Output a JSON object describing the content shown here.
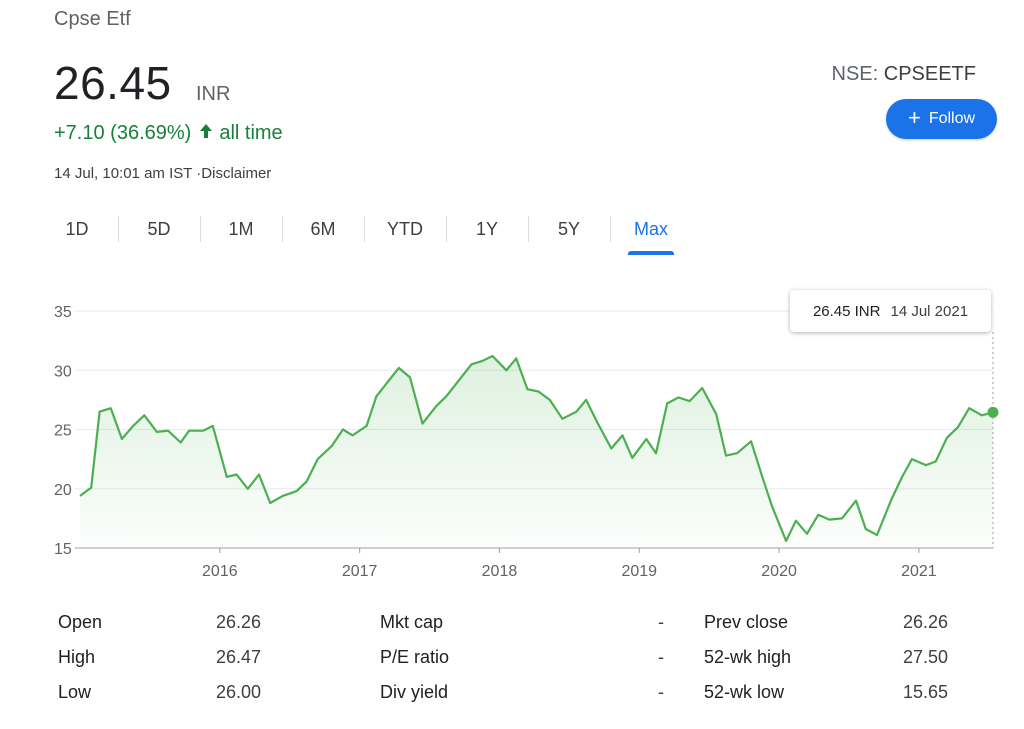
{
  "header": {
    "title": "Cpse Etf",
    "price": "26.45",
    "currency": "INR",
    "change": "+7.10 (36.69%)",
    "change_arrow": "↑",
    "change_period": "all time",
    "timestamp": "14 Jul, 10:01 am IST ·Disclaimer",
    "exchange": "NSE:",
    "ticker": "CPSEETF",
    "follow_label": "Follow",
    "follow_icon": "plus-icon"
  },
  "tabs": [
    {
      "label": "1D",
      "active": false
    },
    {
      "label": "5D",
      "active": false
    },
    {
      "label": "1M",
      "active": false
    },
    {
      "label": "6M",
      "active": false
    },
    {
      "label": "YTD",
      "active": false
    },
    {
      "label": "1Y",
      "active": false
    },
    {
      "label": "5Y",
      "active": false
    },
    {
      "label": "Max",
      "active": true
    }
  ],
  "tooltip": {
    "value": "26.45 INR",
    "date": "14 Jul 2021"
  },
  "colors": {
    "line": "#4caf50",
    "accent": "#1a73e8",
    "positive": "#188038"
  },
  "chart_data": {
    "type": "area",
    "y_ticks": [
      "35",
      "30",
      "25",
      "20",
      "15"
    ],
    "x_ticks": [
      "2016",
      "2017",
      "2018",
      "2019",
      "2020",
      "2021"
    ],
    "ylim": [
      15,
      35
    ],
    "grid": true,
    "x": [
      2015.0,
      2015.08,
      2015.14,
      2015.22,
      2015.3,
      2015.38,
      2015.46,
      2015.55,
      2015.63,
      2015.72,
      2015.78,
      2015.88,
      2015.95,
      2016.05,
      2016.12,
      2016.2,
      2016.28,
      2016.36,
      2016.45,
      2016.55,
      2016.62,
      2016.7,
      2016.8,
      2016.88,
      2016.95,
      2017.05,
      2017.12,
      2017.2,
      2017.28,
      2017.36,
      2017.45,
      2017.55,
      2017.62,
      2017.7,
      2017.8,
      2017.88,
      2017.95,
      2018.05,
      2018.12,
      2018.2,
      2018.28,
      2018.36,
      2018.45,
      2018.55,
      2018.62,
      2018.7,
      2018.8,
      2018.88,
      2018.95,
      2019.05,
      2019.12,
      2019.2,
      2019.28,
      2019.36,
      2019.45,
      2019.55,
      2019.62,
      2019.7,
      2019.8,
      2019.88,
      2019.95,
      2020.05,
      2020.12,
      2020.2,
      2020.28,
      2020.36,
      2020.45,
      2020.55,
      2020.62,
      2020.7,
      2020.8,
      2020.88,
      2020.95,
      2021.05,
      2021.12,
      2021.2,
      2021.28,
      2021.36,
      2021.45,
      2021.53
    ],
    "values": [
      19.4,
      20.1,
      26.5,
      26.8,
      24.2,
      25.3,
      26.2,
      24.8,
      24.9,
      23.9,
      24.9,
      24.9,
      25.3,
      21.0,
      21.2,
      20.0,
      21.2,
      18.8,
      19.4,
      19.8,
      20.6,
      22.5,
      23.6,
      25.0,
      24.5,
      25.3,
      27.8,
      29.0,
      30.2,
      29.4,
      25.5,
      27.0,
      27.8,
      29.0,
      30.5,
      30.8,
      31.2,
      30.0,
      31.0,
      28.4,
      28.2,
      27.5,
      25.9,
      26.5,
      27.5,
      25.6,
      23.4,
      24.5,
      22.6,
      24.2,
      23.0,
      27.2,
      27.7,
      27.4,
      28.5,
      26.3,
      22.8,
      23.0,
      24.0,
      21.0,
      18.5,
      15.6,
      17.3,
      16.2,
      17.8,
      17.4,
      17.5,
      19.0,
      16.6,
      16.1,
      19.0,
      21.0,
      22.5,
      22.0,
      22.3,
      24.3,
      25.2,
      26.8,
      26.2,
      26.45
    ]
  },
  "stats": [
    [
      {
        "label": "Open",
        "value": "26.26"
      },
      {
        "label": "High",
        "value": "26.47"
      },
      {
        "label": "Low",
        "value": "26.00"
      }
    ],
    [
      {
        "label": "Mkt cap",
        "value": "-"
      },
      {
        "label": "P/E ratio",
        "value": "-"
      },
      {
        "label": "Div yield",
        "value": "-"
      }
    ],
    [
      {
        "label": "Prev close",
        "value": "26.26"
      },
      {
        "label": "52-wk high",
        "value": "27.50"
      },
      {
        "label": "52-wk low",
        "value": "15.65"
      }
    ]
  ]
}
